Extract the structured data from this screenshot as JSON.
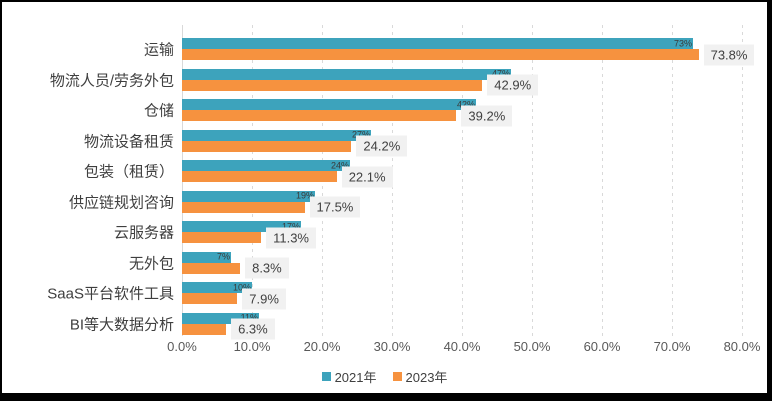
{
  "chart_data": {
    "type": "bar",
    "orientation": "horizontal",
    "title": "",
    "categories": [
      "运输",
      "物流人员/劳务外包",
      "仓储",
      "物流设备租赁",
      "包装（租赁）",
      "供应链规划咨询",
      "云服务器",
      "无外包",
      "SaaS平台软件工具",
      "BI等大数据分析"
    ],
    "series": [
      {
        "name": "2021年",
        "color": "#3da3bc",
        "values": [
          73,
          47,
          42,
          27,
          24,
          19,
          17,
          7,
          10,
          11
        ],
        "labels": [
          "73%",
          "47%",
          "42%",
          "27%",
          "24%",
          "19%",
          "17%",
          "7%",
          "10%",
          "11%"
        ]
      },
      {
        "name": "2023年",
        "color": "#f6923f",
        "values": [
          73.8,
          42.9,
          39.2,
          24.2,
          22.1,
          17.5,
          11.3,
          8.3,
          7.9,
          6.3
        ],
        "labels": [
          "73.8%",
          "42.9%",
          "39.2%",
          "24.2%",
          "22.1%",
          "17.5%",
          "11.3%",
          "8.3%",
          "7.9%",
          "6.3%"
        ]
      }
    ],
    "x_axis": {
      "min": 0,
      "max": 80,
      "ticks": [
        "0.0%",
        "10.0%",
        "20.0%",
        "30.0%",
        "40.0%",
        "50.0%",
        "60.0%",
        "70.0%",
        "80.0%"
      ]
    },
    "legend": {
      "position": "bottom",
      "items": [
        "2021年",
        "2023年"
      ]
    },
    "grid": "vertical-dashed"
  },
  "colors": {
    "series_2021": "#3da3bc",
    "series_2023": "#f6923f",
    "data_label_box": "#f1f1f1",
    "gridline": "#d9d9d9",
    "category_text": "#3f3f3f",
    "axis_text": "#595959",
    "frame": "#000000"
  }
}
